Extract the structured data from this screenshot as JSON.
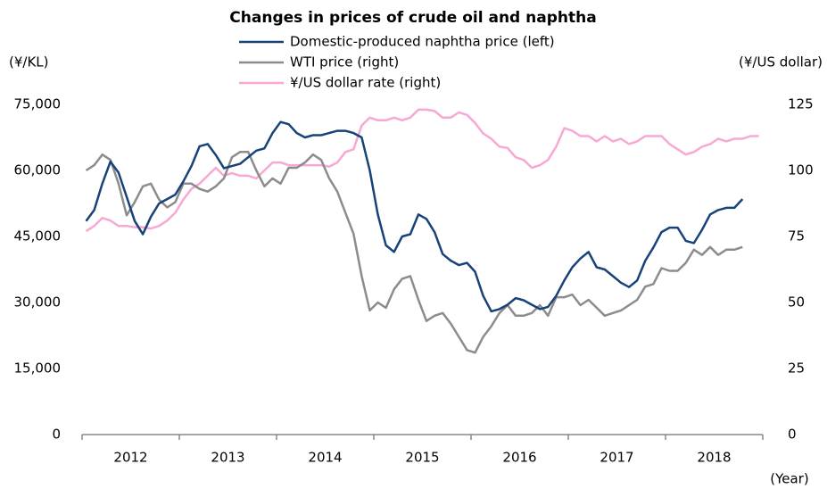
{
  "chart_data": {
    "type": "line",
    "title": "Changes in prices of crude oil and naphtha",
    "y_label": "(¥/KL)",
    "y2_label": "(¥/US dollar)",
    "x_label": "(Year)",
    "categories": [
      null,
      null,
      null,
      null,
      null,
      "2012",
      null,
      null,
      null,
      null,
      null,
      null,
      null,
      null,
      null,
      null,
      null,
      "2013",
      null,
      null,
      null,
      null,
      null,
      null,
      null,
      null,
      null,
      null,
      null,
      "2014",
      null,
      null,
      null,
      null,
      null,
      null,
      null,
      null,
      null,
      null,
      null,
      "2015",
      null,
      null,
      null,
      null,
      null,
      null,
      null,
      null,
      null,
      null,
      null,
      "2016",
      null,
      null,
      null,
      null,
      null,
      null,
      null,
      null,
      null,
      null,
      null,
      "2017",
      null,
      null,
      null,
      null,
      null,
      null,
      null,
      null,
      null,
      null,
      null,
      "2018",
      null,
      null,
      null,
      null,
      null,
      null
    ],
    "series": [
      {
        "name": "Domestic-produced naphtha price (left)",
        "color": "#17427a",
        "axis": "y",
        "values": [
          48500,
          51000,
          57000,
          62000,
          59500,
          54000,
          48500,
          45500,
          49500,
          52500,
          53500,
          54500,
          57500,
          61000,
          65500,
          66000,
          63500,
          60500,
          61000,
          61500,
          63000,
          64500,
          65000,
          68500,
          71000,
          70500,
          68500,
          67500,
          68000,
          68000,
          68500,
          69000,
          69000,
          68500,
          67500,
          60000,
          50000,
          43000,
          41500,
          45000,
          45500,
          50000,
          49000,
          46000,
          41000,
          39500,
          38500,
          39000,
          37000,
          31500,
          28000,
          28500,
          29500,
          31000,
          30500,
          29500,
          28500,
          29000,
          31500,
          35000,
          38000,
          40000,
          41500,
          38000,
          37500,
          36000,
          34500,
          33500,
          35000,
          39500,
          42500,
          46000,
          47000,
          47000,
          44000,
          43500,
          46500,
          50000,
          51000,
          51500,
          51500,
          53500,
          null,
          null
        ]
      },
      {
        "name": "WTI price (right)",
        "color": "#8c8c8c",
        "axis": "y2",
        "values": [
          100,
          102,
          106,
          104,
          95,
          83,
          88,
          94,
          95,
          89,
          86,
          88,
          95,
          95,
          93,
          92,
          94,
          97,
          105,
          107,
          107,
          100,
          94,
          97,
          95,
          101,
          101,
          103,
          106,
          104,
          97,
          92,
          84,
          76,
          60,
          47,
          50,
          48,
          55,
          59,
          60,
          51,
          43,
          45,
          46,
          42,
          37,
          32,
          31,
          37,
          41,
          46,
          49,
          45,
          45,
          46,
          49,
          45,
          52,
          52,
          53,
          49,
          51,
          48,
          45,
          46,
          47,
          49,
          51,
          56,
          57,
          63,
          62,
          62,
          65,
          70,
          68,
          71,
          68,
          70,
          70,
          71,
          null,
          null
        ]
      },
      {
        "name": "¥/US dollar rate (right)",
        "color": "#f7a8d4",
        "axis": "y2",
        "values": [
          77,
          79,
          82,
          81,
          79,
          79,
          78.5,
          78.5,
          78,
          79,
          81,
          84,
          89,
          93,
          95,
          98,
          101,
          98,
          99,
          98,
          98,
          97,
          100,
          103,
          103,
          102,
          102,
          102,
          102,
          102,
          101.5,
          103,
          107,
          108,
          117,
          120,
          119,
          119,
          120,
          119,
          120,
          123,
          123,
          122.5,
          120,
          120,
          122,
          121,
          118,
          114,
          112,
          109,
          108.5,
          105,
          104,
          101,
          102,
          104,
          109,
          116,
          115,
          113,
          113,
          111,
          113,
          111,
          112,
          110,
          111,
          113,
          113,
          113,
          110,
          108,
          106,
          107,
          109,
          110,
          112,
          111,
          112,
          112,
          113,
          113
        ]
      }
    ],
    "ylim": [
      0,
      75000
    ],
    "yticks": [
      0,
      {
        "value": 15000,
        "label": "15,000"
      },
      {
        "value": 30000,
        "label": "30,000"
      },
      {
        "value": 45000,
        "label": "45,000"
      },
      {
        "value": 60000,
        "label": "60,000"
      },
      {
        "value": 75000,
        "label": "75,000"
      }
    ],
    "y2lim": [
      0,
      125
    ],
    "y2ticks": [
      0,
      25,
      50,
      75,
      100,
      125
    ],
    "grid": false
  }
}
